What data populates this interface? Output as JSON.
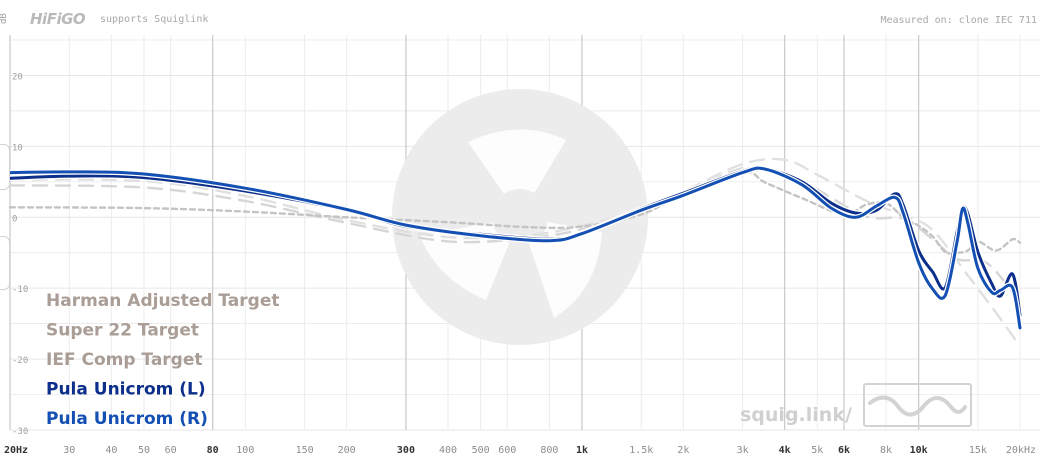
{
  "header": {
    "brand": "HiFiGO",
    "supports": "supports Squiglink",
    "measured": "Measured on: clone IEC 711",
    "y_unit": "dB"
  },
  "watermark": {
    "site": "squig.link/",
    "icon": "fan-logo-icon",
    "wave_icon": "waveform-icon"
  },
  "colors": {
    "background": "#ffffff",
    "grid": "#e6e6e6",
    "target_text": "#a99d96",
    "target_line": "#c8c8c8",
    "left": "#0b2f8a",
    "right": "#1450b4",
    "watermark": "#ececec"
  },
  "chart_data": {
    "type": "line",
    "title": "",
    "xlabel": "",
    "ylabel": "dB",
    "x_scale": "log",
    "xlim": [
      20,
      20000
    ],
    "ylim": [
      -30,
      25
    ],
    "grid": true,
    "legend_position": "bottom-left",
    "x_ticks": [
      {
        "v": 20,
        "label": "20Hz",
        "major": true
      },
      {
        "v": 30,
        "label": "30",
        "major": false
      },
      {
        "v": 40,
        "label": "40",
        "major": false
      },
      {
        "v": 50,
        "label": "50",
        "major": false
      },
      {
        "v": 60,
        "label": "60",
        "major": false
      },
      {
        "v": 80,
        "label": "80",
        "major": true
      },
      {
        "v": 100,
        "label": "100",
        "major": false
      },
      {
        "v": 150,
        "label": "150",
        "major": false
      },
      {
        "v": 200,
        "label": "200",
        "major": false
      },
      {
        "v": 300,
        "label": "300",
        "major": true
      },
      {
        "v": 400,
        "label": "400",
        "major": false
      },
      {
        "v": 500,
        "label": "500",
        "major": false
      },
      {
        "v": 600,
        "label": "600",
        "major": false
      },
      {
        "v": 800,
        "label": "800",
        "major": false
      },
      {
        "v": 1000,
        "label": "1k",
        "major": true
      },
      {
        "v": 1500,
        "label": "1.5k",
        "major": false
      },
      {
        "v": 2000,
        "label": "2k",
        "major": false
      },
      {
        "v": 3000,
        "label": "3k",
        "major": false
      },
      {
        "v": 4000,
        "label": "4k",
        "major": true
      },
      {
        "v": 5000,
        "label": "5k",
        "major": false
      },
      {
        "v": 6000,
        "label": "6k",
        "major": true
      },
      {
        "v": 8000,
        "label": "8k",
        "major": false
      },
      {
        "v": 10000,
        "label": "10k",
        "major": true
      },
      {
        "v": 15000,
        "label": "15k",
        "major": false
      },
      {
        "v": 20000,
        "label": "20kHz",
        "major": false
      }
    ],
    "y_ticks": [
      {
        "v": 20,
        "label": "20"
      },
      {
        "v": 10,
        "label": "10"
      },
      {
        "v": 0,
        "label": "0"
      },
      {
        "v": -10,
        "label": "-10"
      },
      {
        "v": -20,
        "label": "-20"
      },
      {
        "v": -30,
        "label": "-30"
      }
    ],
    "series": [
      {
        "name": "Harman Adjusted Target",
        "style": "long-dash",
        "color": "#d6d6d6",
        "points": [
          [
            20,
            4.5
          ],
          [
            50,
            4.2
          ],
          [
            100,
            2.3
          ],
          [
            200,
            -0.8
          ],
          [
            400,
            -3.4
          ],
          [
            700,
            -2.9
          ],
          [
            1000,
            -1.7
          ],
          [
            1500,
            0.8
          ],
          [
            2000,
            3.2
          ],
          [
            3000,
            6.9
          ],
          [
            4000,
            6.3
          ],
          [
            5000,
            3.9
          ],
          [
            7000,
            0.1
          ],
          [
            9000,
            -0.2
          ],
          [
            11000,
            -3.1
          ],
          [
            13000,
            -5.9
          ],
          [
            16000,
            -6.5
          ],
          [
            20000,
            -12
          ]
        ]
      },
      {
        "name": "Super 22 Target",
        "style": "long-dash",
        "color": "#e0e0e0",
        "points": [
          [
            20,
            5.3
          ],
          [
            50,
            5.1
          ],
          [
            100,
            3
          ],
          [
            200,
            -0.4
          ],
          [
            400,
            -2.8
          ],
          [
            700,
            -2.5
          ],
          [
            1000,
            -1.2
          ],
          [
            1500,
            1
          ],
          [
            2000,
            3.6
          ],
          [
            3000,
            7.5
          ],
          [
            4000,
            8.1
          ],
          [
            5000,
            6
          ],
          [
            7000,
            2.3
          ],
          [
            9000,
            0.3
          ],
          [
            11000,
            -1.8
          ],
          [
            14000,
            -8.2
          ],
          [
            17000,
            -13.5
          ],
          [
            20000,
            -18.2
          ]
        ]
      },
      {
        "name": "IEF Comp Target",
        "style": "short-dash",
        "color": "#c4c4c4",
        "points": [
          [
            20,
            1.4
          ],
          [
            50,
            1.3
          ],
          [
            100,
            0.8
          ],
          [
            200,
            0
          ],
          [
            400,
            -0.7
          ],
          [
            700,
            -1.4
          ],
          [
            1000,
            -1.3
          ],
          [
            1500,
            0.4
          ],
          [
            2000,
            3.3
          ],
          [
            3000,
            6.4
          ],
          [
            3500,
            4.9
          ],
          [
            4500,
            2.7
          ],
          [
            6000,
            0.4
          ],
          [
            7000,
            1.8
          ],
          [
            8000,
            2
          ],
          [
            9000,
            0
          ],
          [
            10000,
            -1.2
          ],
          [
            11000,
            -2.7
          ],
          [
            12000,
            -4.9
          ],
          [
            13000,
            -5
          ],
          [
            14000,
            -4.7
          ],
          [
            15000,
            -3.4
          ],
          [
            17000,
            -4.7
          ],
          [
            19000,
            -3.1
          ],
          [
            20000,
            -3.6
          ]
        ]
      },
      {
        "name": "Pula Unicrom (L)",
        "style": "solid",
        "color": "#0b2f8a",
        "points": [
          [
            20,
            5.5
          ],
          [
            30,
            5.8
          ],
          [
            50,
            5.6
          ],
          [
            100,
            3.7
          ],
          [
            200,
            1
          ],
          [
            300,
            -1.3
          ],
          [
            500,
            -2.4
          ],
          [
            800,
            -3.1
          ],
          [
            1000,
            -2.2
          ],
          [
            1500,
            1.2
          ],
          [
            2000,
            3.4
          ],
          [
            3000,
            6.5
          ],
          [
            3500,
            6.9
          ],
          [
            4500,
            5
          ],
          [
            5500,
            2
          ],
          [
            6500,
            0.6
          ],
          [
            7500,
            1
          ],
          [
            8500,
            3.3
          ],
          [
            9000,
            1.7
          ],
          [
            10000,
            -4.7
          ],
          [
            11000,
            -7.7
          ],
          [
            12000,
            -9.9
          ],
          [
            13000,
            -2.1
          ],
          [
            13500,
            1.2
          ],
          [
            14000,
            0.5
          ],
          [
            15000,
            -4.9
          ],
          [
            16500,
            -9.4
          ],
          [
            17500,
            -11.1
          ],
          [
            19000,
            -8
          ],
          [
            20000,
            -13.8
          ]
        ]
      },
      {
        "name": "Pula Unicrom (R)",
        "style": "solid",
        "color": "#1450b4",
        "points": [
          [
            20,
            6.3
          ],
          [
            30,
            6.4
          ],
          [
            50,
            6.1
          ],
          [
            100,
            4.1
          ],
          [
            200,
            1.1
          ],
          [
            300,
            -1.1
          ],
          [
            500,
            -2.6
          ],
          [
            800,
            -3.3
          ],
          [
            1000,
            -2.3
          ],
          [
            1500,
            1
          ],
          [
            2000,
            3.1
          ],
          [
            3000,
            6.3
          ],
          [
            3500,
            6.8
          ],
          [
            4500,
            4.6
          ],
          [
            5500,
            1.3
          ],
          [
            6500,
            0
          ],
          [
            7500,
            1.6
          ],
          [
            8500,
            2.8
          ],
          [
            9000,
            0.6
          ],
          [
            10000,
            -6.4
          ],
          [
            11000,
            -10.1
          ],
          [
            12000,
            -11
          ],
          [
            13000,
            -3.5
          ],
          [
            13500,
            1.2
          ],
          [
            14000,
            -0.8
          ],
          [
            15000,
            -7.2
          ],
          [
            16500,
            -10.6
          ],
          [
            17500,
            -10.3
          ],
          [
            19000,
            -9.9
          ],
          [
            20000,
            -15.6
          ]
        ]
      }
    ]
  }
}
